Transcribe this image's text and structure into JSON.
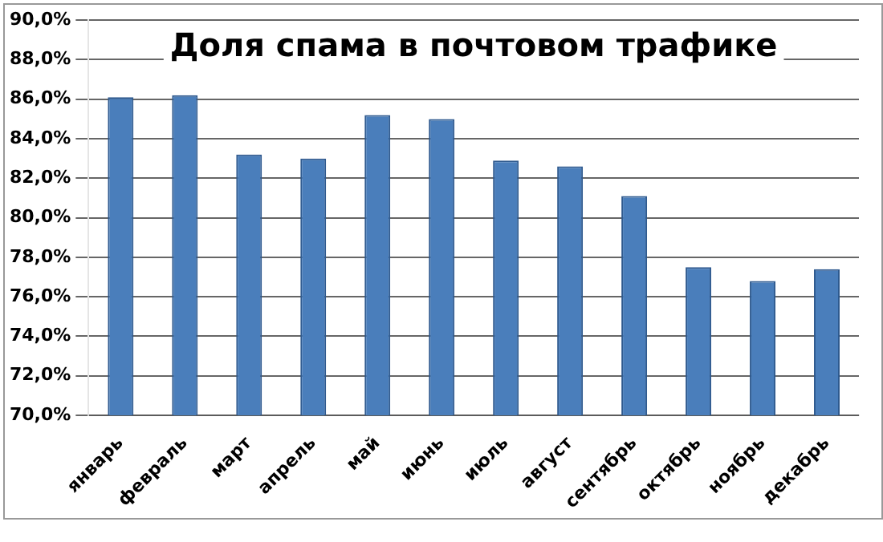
{
  "chart_data": {
    "type": "bar",
    "title": "Доля спама в почтовом трафике",
    "categories": [
      "январь",
      "февраль",
      "март",
      "апрель",
      "май",
      "июнь",
      "июль",
      "август",
      "сентябрь",
      "октябрь",
      "ноябрь",
      "декабрь"
    ],
    "values": [
      86.1,
      86.2,
      83.2,
      83.0,
      85.2,
      85.0,
      82.9,
      82.6,
      81.1,
      77.5,
      76.8,
      77.4
    ],
    "color": "#4a7ebb",
    "ylim": [
      70,
      90
    ],
    "yticks": [
      {
        "value": 70,
        "label": "70,0%"
      },
      {
        "value": 72,
        "label": "72,0%"
      },
      {
        "value": 74,
        "label": "74,0%"
      },
      {
        "value": 76,
        "label": "76,0%"
      },
      {
        "value": 78,
        "label": "78,0%"
      },
      {
        "value": 80,
        "label": "80,0%"
      },
      {
        "value": 82,
        "label": "82,0%"
      },
      {
        "value": 84,
        "label": "84,0%"
      },
      {
        "value": 86,
        "label": "86,0%"
      },
      {
        "value": 88,
        "label": "88,0%"
      },
      {
        "value": 90,
        "label": "90,0%"
      }
    ],
    "grid": "y",
    "legend": false
  }
}
